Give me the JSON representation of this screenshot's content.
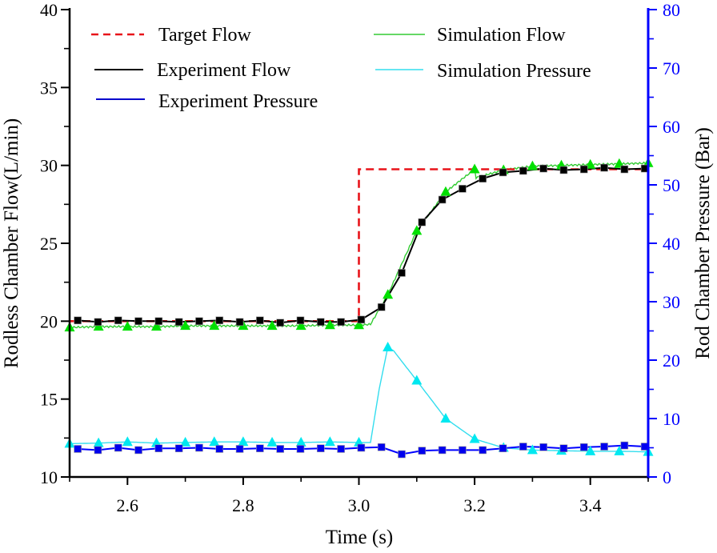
{
  "chart_data": {
    "type": "line",
    "title": "",
    "xlabel": "Time (s)",
    "ylabel": "Rodless Chamber Flow(L/min)",
    "y2label": "Rod Chamber Pressure (Bar)",
    "xlim": [
      2.5,
      3.5
    ],
    "ylim": [
      10,
      40
    ],
    "y2lim": [
      0,
      80
    ],
    "xticks": [
      "2.6",
      "2.8",
      "3.0",
      "3.2",
      "3.4"
    ],
    "xtick_values": [
      2.6,
      2.8,
      3.0,
      3.2,
      3.4
    ],
    "yticks": [
      "10",
      "15",
      "20",
      "25",
      "30",
      "35",
      "40"
    ],
    "ytick_values": [
      10,
      15,
      20,
      25,
      30,
      35,
      40
    ],
    "y2ticks": [
      "0",
      "10",
      "20",
      "30",
      "40",
      "50",
      "60",
      "70",
      "80"
    ],
    "y2tick_values": [
      0,
      10,
      20,
      30,
      40,
      50,
      60,
      70,
      80
    ],
    "grid": false,
    "legend_position": "top",
    "colors": {
      "axis_left": "#000000",
      "axis_right": "#0000ff"
    },
    "series": [
      {
        "name": "Target Flow",
        "axis": "left",
        "color": "#e8141a",
        "style": "dashed",
        "marker": "none",
        "x": [
          2.5,
          3.0,
          3.0,
          3.5
        ],
        "y": [
          20.0,
          20.0,
          29.75,
          29.75
        ]
      },
      {
        "name": "Experiment Flow",
        "axis": "left",
        "color": "#000000",
        "style": "solid",
        "marker": "square",
        "x": [
          2.514,
          2.549,
          2.584,
          2.619,
          2.654,
          2.689,
          2.724,
          2.759,
          2.794,
          2.829,
          2.864,
          2.899,
          2.934,
          2.969,
          3.004,
          3.039,
          3.074,
          3.109,
          3.144,
          3.179,
          3.214,
          3.249,
          3.284,
          3.319,
          3.354,
          3.389,
          3.424,
          3.459,
          3.494
        ],
        "y": [
          20.05,
          19.95,
          20.05,
          20.0,
          20.0,
          19.95,
          20.0,
          20.05,
          19.95,
          20.05,
          19.9,
          20.05,
          19.95,
          19.95,
          20.1,
          20.9,
          23.1,
          26.35,
          27.8,
          28.5,
          29.15,
          29.55,
          29.65,
          29.8,
          29.7,
          29.75,
          29.85,
          29.75,
          29.8
        ]
      },
      {
        "name": "Experiment Pressure",
        "axis": "right",
        "color": "#0000ff",
        "style": "solid",
        "marker": "square",
        "x": [
          2.514,
          2.549,
          2.584,
          2.619,
          2.654,
          2.689,
          2.724,
          2.759,
          2.794,
          2.829,
          2.864,
          2.899,
          2.934,
          2.969,
          3.004,
          3.039,
          3.074,
          3.109,
          3.144,
          3.179,
          3.214,
          3.249,
          3.284,
          3.319,
          3.354,
          3.389,
          3.424,
          3.459,
          3.494
        ],
        "y": [
          4.8,
          4.6,
          5.0,
          4.6,
          4.9,
          4.9,
          5.0,
          4.8,
          4.8,
          4.9,
          4.8,
          4.8,
          4.9,
          4.8,
          5.0,
          5.1,
          3.9,
          4.5,
          4.6,
          4.6,
          4.6,
          4.9,
          5.2,
          5.1,
          4.9,
          5.1,
          5.2,
          5.4,
          5.2
        ]
      },
      {
        "name": "Simulation Flow",
        "axis": "left",
        "color": "#33cc33",
        "marker_color": "#00e000",
        "style": "solid",
        "marker": "triangle",
        "x": [
          2.5,
          2.55,
          2.6,
          2.65,
          2.7,
          2.75,
          2.8,
          2.85,
          2.9,
          2.95,
          3.0,
          3.02,
          3.05,
          3.1,
          3.15,
          3.2,
          3.201,
          3.25,
          3.3,
          3.35,
          3.4,
          3.45,
          3.5
        ],
        "y": [
          19.6,
          19.65,
          19.65,
          19.65,
          19.7,
          19.7,
          19.7,
          19.7,
          19.7,
          19.75,
          19.75,
          19.8,
          21.7,
          25.8,
          28.3,
          29.75,
          29.2,
          29.7,
          29.95,
          30.0,
          30.05,
          30.1,
          30.15
        ]
      },
      {
        "name": "Simulation Pressure",
        "axis": "right",
        "color": "#33ddee",
        "marker_color": "#00e8f0",
        "style": "solid",
        "marker": "triangle",
        "x": [
          2.5,
          2.55,
          2.6,
          2.65,
          2.7,
          2.75,
          2.8,
          2.85,
          2.9,
          2.95,
          3.0,
          3.02,
          3.035,
          3.05,
          3.06,
          3.1,
          3.15,
          3.2,
          3.25,
          3.3,
          3.35,
          3.4,
          3.45,
          3.5
        ],
        "y": [
          5.7,
          5.8,
          6.0,
          5.8,
          5.9,
          6.0,
          6.0,
          5.9,
          5.9,
          6.0,
          5.9,
          5.9,
          15.0,
          22.2,
          21.6,
          16.5,
          10.0,
          6.5,
          5.0,
          4.6,
          4.5,
          4.4,
          4.4,
          4.3
        ]
      }
    ],
    "markers": {
      "Simulation Flow": [
        2.5,
        2.55,
        2.6,
        2.65,
        2.7,
        2.75,
        2.8,
        2.85,
        2.9,
        2.95,
        3.0,
        3.05,
        3.1,
        3.15,
        3.2,
        3.25,
        3.3,
        3.35,
        3.4,
        3.45,
        3.5
      ],
      "Simulation Pressure": [
        2.5,
        2.55,
        2.6,
        2.65,
        2.7,
        2.75,
        2.8,
        2.85,
        2.9,
        2.95,
        3.0,
        3.05,
        3.1,
        3.15,
        3.2,
        3.25,
        3.3,
        3.35,
        3.4,
        3.45,
        3.5
      ]
    },
    "legend": [
      {
        "label": "Target Flow",
        "column": 1
      },
      {
        "label": "Experiment Flow",
        "column": 1
      },
      {
        "label": "Experiment Pressure",
        "column": 1
      },
      {
        "label": "Simulation Flow",
        "column": 2
      },
      {
        "label": "Simulation Pressure",
        "column": 2
      }
    ]
  }
}
